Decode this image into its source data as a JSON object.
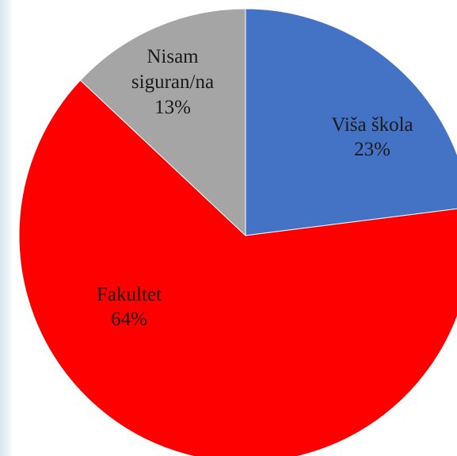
{
  "chart_data": {
    "type": "pie",
    "categories": [
      "Viša škola",
      "Fakultet",
      "Nisam siguran/na"
    ],
    "values": [
      23,
      64,
      13
    ],
    "value_labels": [
      "23%",
      "64%",
      "13%"
    ],
    "colors": [
      "#4472c4",
      "#ff0000",
      "#a5a5a5"
    ]
  }
}
